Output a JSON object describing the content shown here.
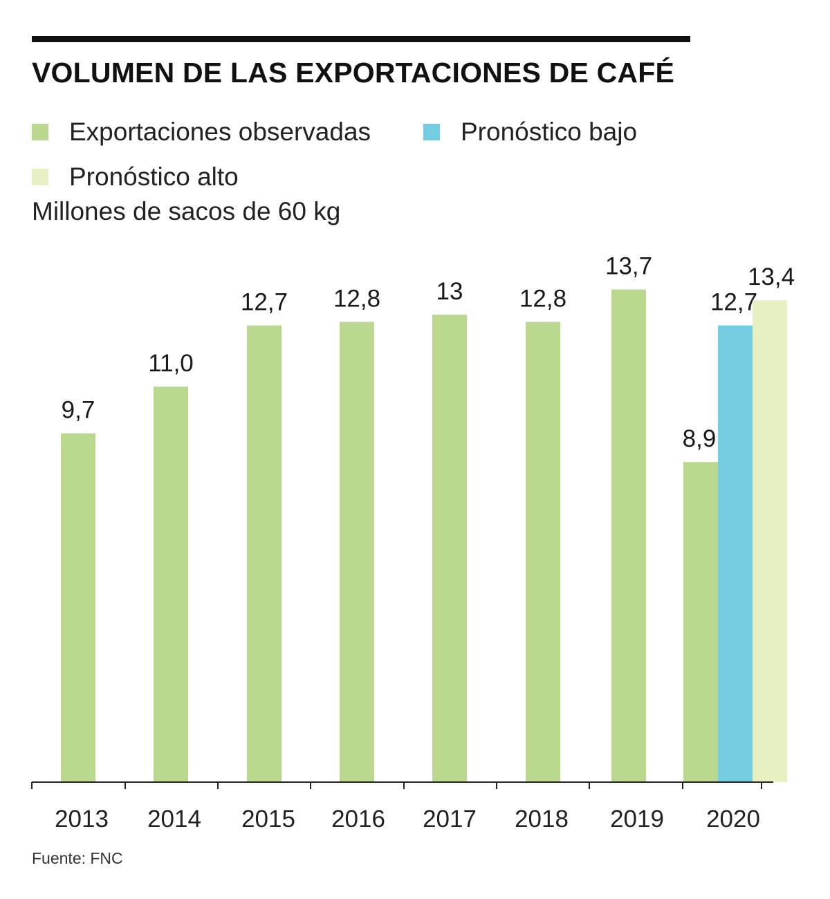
{
  "title": "VOLUMEN DE LAS EXPORTACIONES DE CAFÉ",
  "subtitle": "Millones de sacos de 60 kg",
  "source": "Fuente: FNC",
  "colors": {
    "observed": "#bbd98e",
    "low_forecast": "#74cce1",
    "high_forecast": "#e6f0c3",
    "rule": "#111111",
    "text": "#1a1a1a"
  },
  "legend": [
    {
      "key": "observed",
      "label": "Exportaciones observadas"
    },
    {
      "key": "low_forecast",
      "label": "Pronóstico bajo"
    },
    {
      "key": "high_forecast",
      "label": "Pronóstico alto"
    }
  ],
  "chart_data": {
    "type": "bar",
    "categories": [
      "2013",
      "2014",
      "2015",
      "2016",
      "2017",
      "2018",
      "2019",
      "2020"
    ],
    "series": [
      {
        "name": "Exportaciones observadas",
        "key": "observed",
        "values": [
          9.7,
          11.0,
          12.7,
          12.8,
          13.0,
          12.8,
          13.7,
          8.9
        ],
        "labels": [
          "9,7",
          "11,0",
          "12,7",
          "12,8",
          "13",
          "12,8",
          "13,7",
          "8,9"
        ]
      },
      {
        "name": "Pronóstico bajo",
        "key": "low_forecast",
        "values": [
          null,
          null,
          null,
          null,
          null,
          null,
          null,
          12.7
        ],
        "labels": [
          null,
          null,
          null,
          null,
          null,
          null,
          null,
          "12,7"
        ]
      },
      {
        "name": "Pronóstico alto",
        "key": "high_forecast",
        "values": [
          null,
          null,
          null,
          null,
          null,
          null,
          null,
          13.4
        ],
        "labels": [
          null,
          null,
          null,
          null,
          null,
          null,
          null,
          "13,4"
        ]
      }
    ],
    "ylim": [
      0,
      14.5
    ],
    "grid": false,
    "legend_position": "top-left",
    "title": "VOLUMEN DE LAS EXPORTACIONES DE CAFÉ",
    "ylabel": "Millones de sacos de 60 kg",
    "xlabel": ""
  }
}
